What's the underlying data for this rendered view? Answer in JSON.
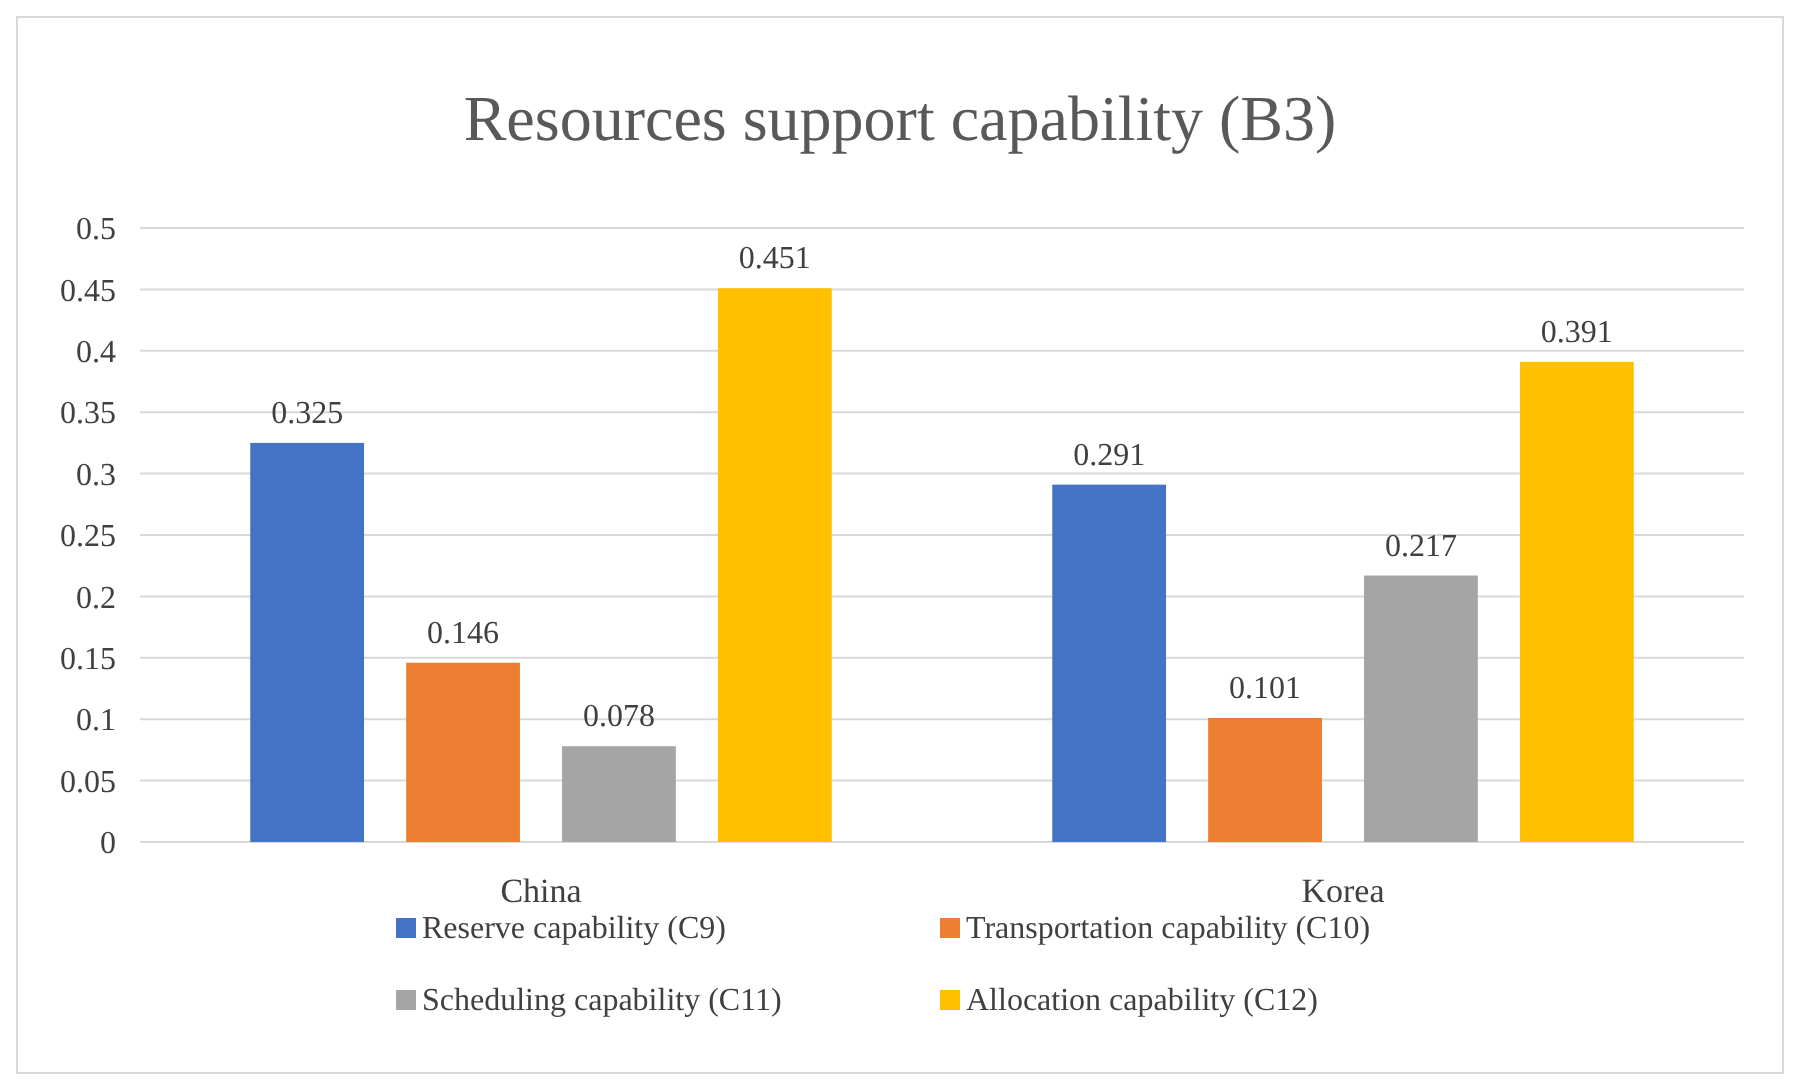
{
  "chart_data": {
    "type": "bar",
    "title": "Resources support capability (B3)",
    "categories": [
      "China",
      "Korea"
    ],
    "series": [
      {
        "name": "Reserve capability (C9)",
        "color": "#4472c4",
        "values": [
          0.325,
          0.291
        ]
      },
      {
        "name": "Transportation capability (C10)",
        "color": "#ed7d31",
        "values": [
          0.146,
          0.101
        ]
      },
      {
        "name": "Scheduling capability (C11)",
        "color": "#a5a5a5",
        "values": [
          0.078,
          0.217
        ]
      },
      {
        "name": "Allocation capability (C12)",
        "color": "#ffc000",
        "values": [
          0.451,
          0.391
        ]
      }
    ],
    "ylim": [
      0,
      0.5
    ],
    "yticks": [
      0,
      0.05,
      0.1,
      0.15,
      0.2,
      0.25,
      0.3,
      0.35,
      0.4,
      0.45,
      0.5
    ],
    "grid": "y",
    "legend": "bottom",
    "data_labels": true
  }
}
